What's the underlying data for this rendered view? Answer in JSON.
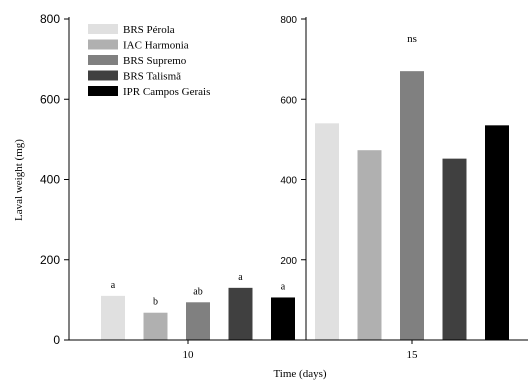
{
  "chart_data": {
    "type": "bar",
    "xlabel": "Time (days)",
    "ylabel": "Laval weight (mg)",
    "legend_placement": "top-left",
    "series": [
      {
        "name": "BRS Pérola",
        "color": "#e0e0e0"
      },
      {
        "name": "IAC Harmonia",
        "color": "#b0b0b0"
      },
      {
        "name": "BRS Supremo",
        "color": "#808080"
      },
      {
        "name": "BRS Talismã",
        "color": "#404040"
      },
      {
        "name": "IPR Campos Gerais",
        "color": "#000000"
      }
    ],
    "panels": [
      {
        "category": "10",
        "ylim": [
          0,
          800
        ],
        "yticks": [
          "0",
          "200",
          "400",
          "600",
          "800"
        ],
        "values": [
          110,
          68,
          94,
          130,
          106
        ],
        "letters": [
          "a",
          "b",
          "ab",
          "a",
          "a"
        ],
        "annotation": ""
      },
      {
        "category": "15",
        "ylim": [
          0,
          800
        ],
        "yticks": [
          "200",
          "400",
          "600",
          "800"
        ],
        "values": [
          540,
          473,
          670,
          452,
          535
        ],
        "letters": [
          "",
          "",
          "",
          "",
          ""
        ],
        "annotation": "ns"
      }
    ]
  }
}
